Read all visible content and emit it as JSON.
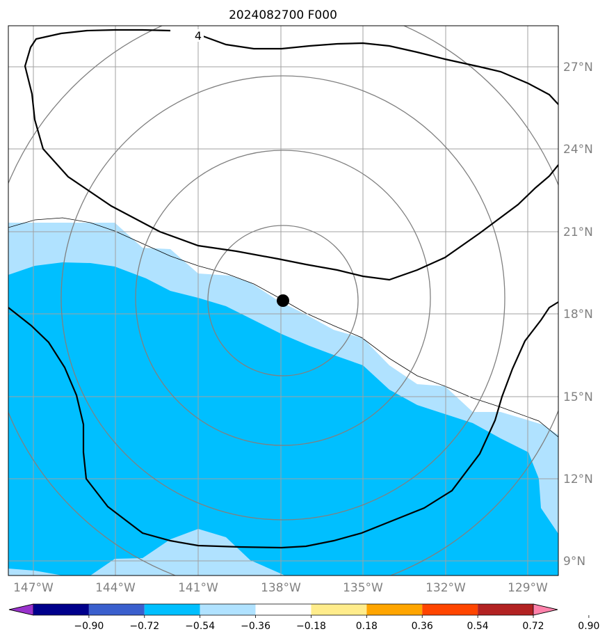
{
  "title": "2024082700 F000",
  "map": {
    "lat_labels": [
      "27°N",
      "24°N",
      "21°N",
      "18°N",
      "15°N",
      "12°N",
      "9°N"
    ],
    "lon_labels": [
      "147°W",
      "144°W",
      "141°W",
      "138°W",
      "135°W",
      "132°W",
      "129°W"
    ],
    "contour_label": "4",
    "storm_center": "138°W, 18.5°N"
  },
  "colorbar": {
    "colors": [
      "#9932cc",
      "#00008b",
      "#3a5fcd",
      "#00bfff",
      "#b0e2ff",
      "#ffffff",
      "#ffec8b",
      "#ffa500",
      "#ff4500",
      "#b22222",
      "#ff82ab"
    ],
    "tick_labels": [
      "−0.90",
      "−0.72",
      "−0.54",
      "−0.36",
      "−0.18",
      "0.18",
      "0.36",
      "0.54",
      "0.72",
      "0.90"
    ]
  },
  "colors": {
    "light_blue_fill": "#b0e2ff",
    "medium_blue_fill": "#00bfff",
    "grid": "#a0a0a0",
    "range_rings": "#808080",
    "contour": "#000000"
  }
}
